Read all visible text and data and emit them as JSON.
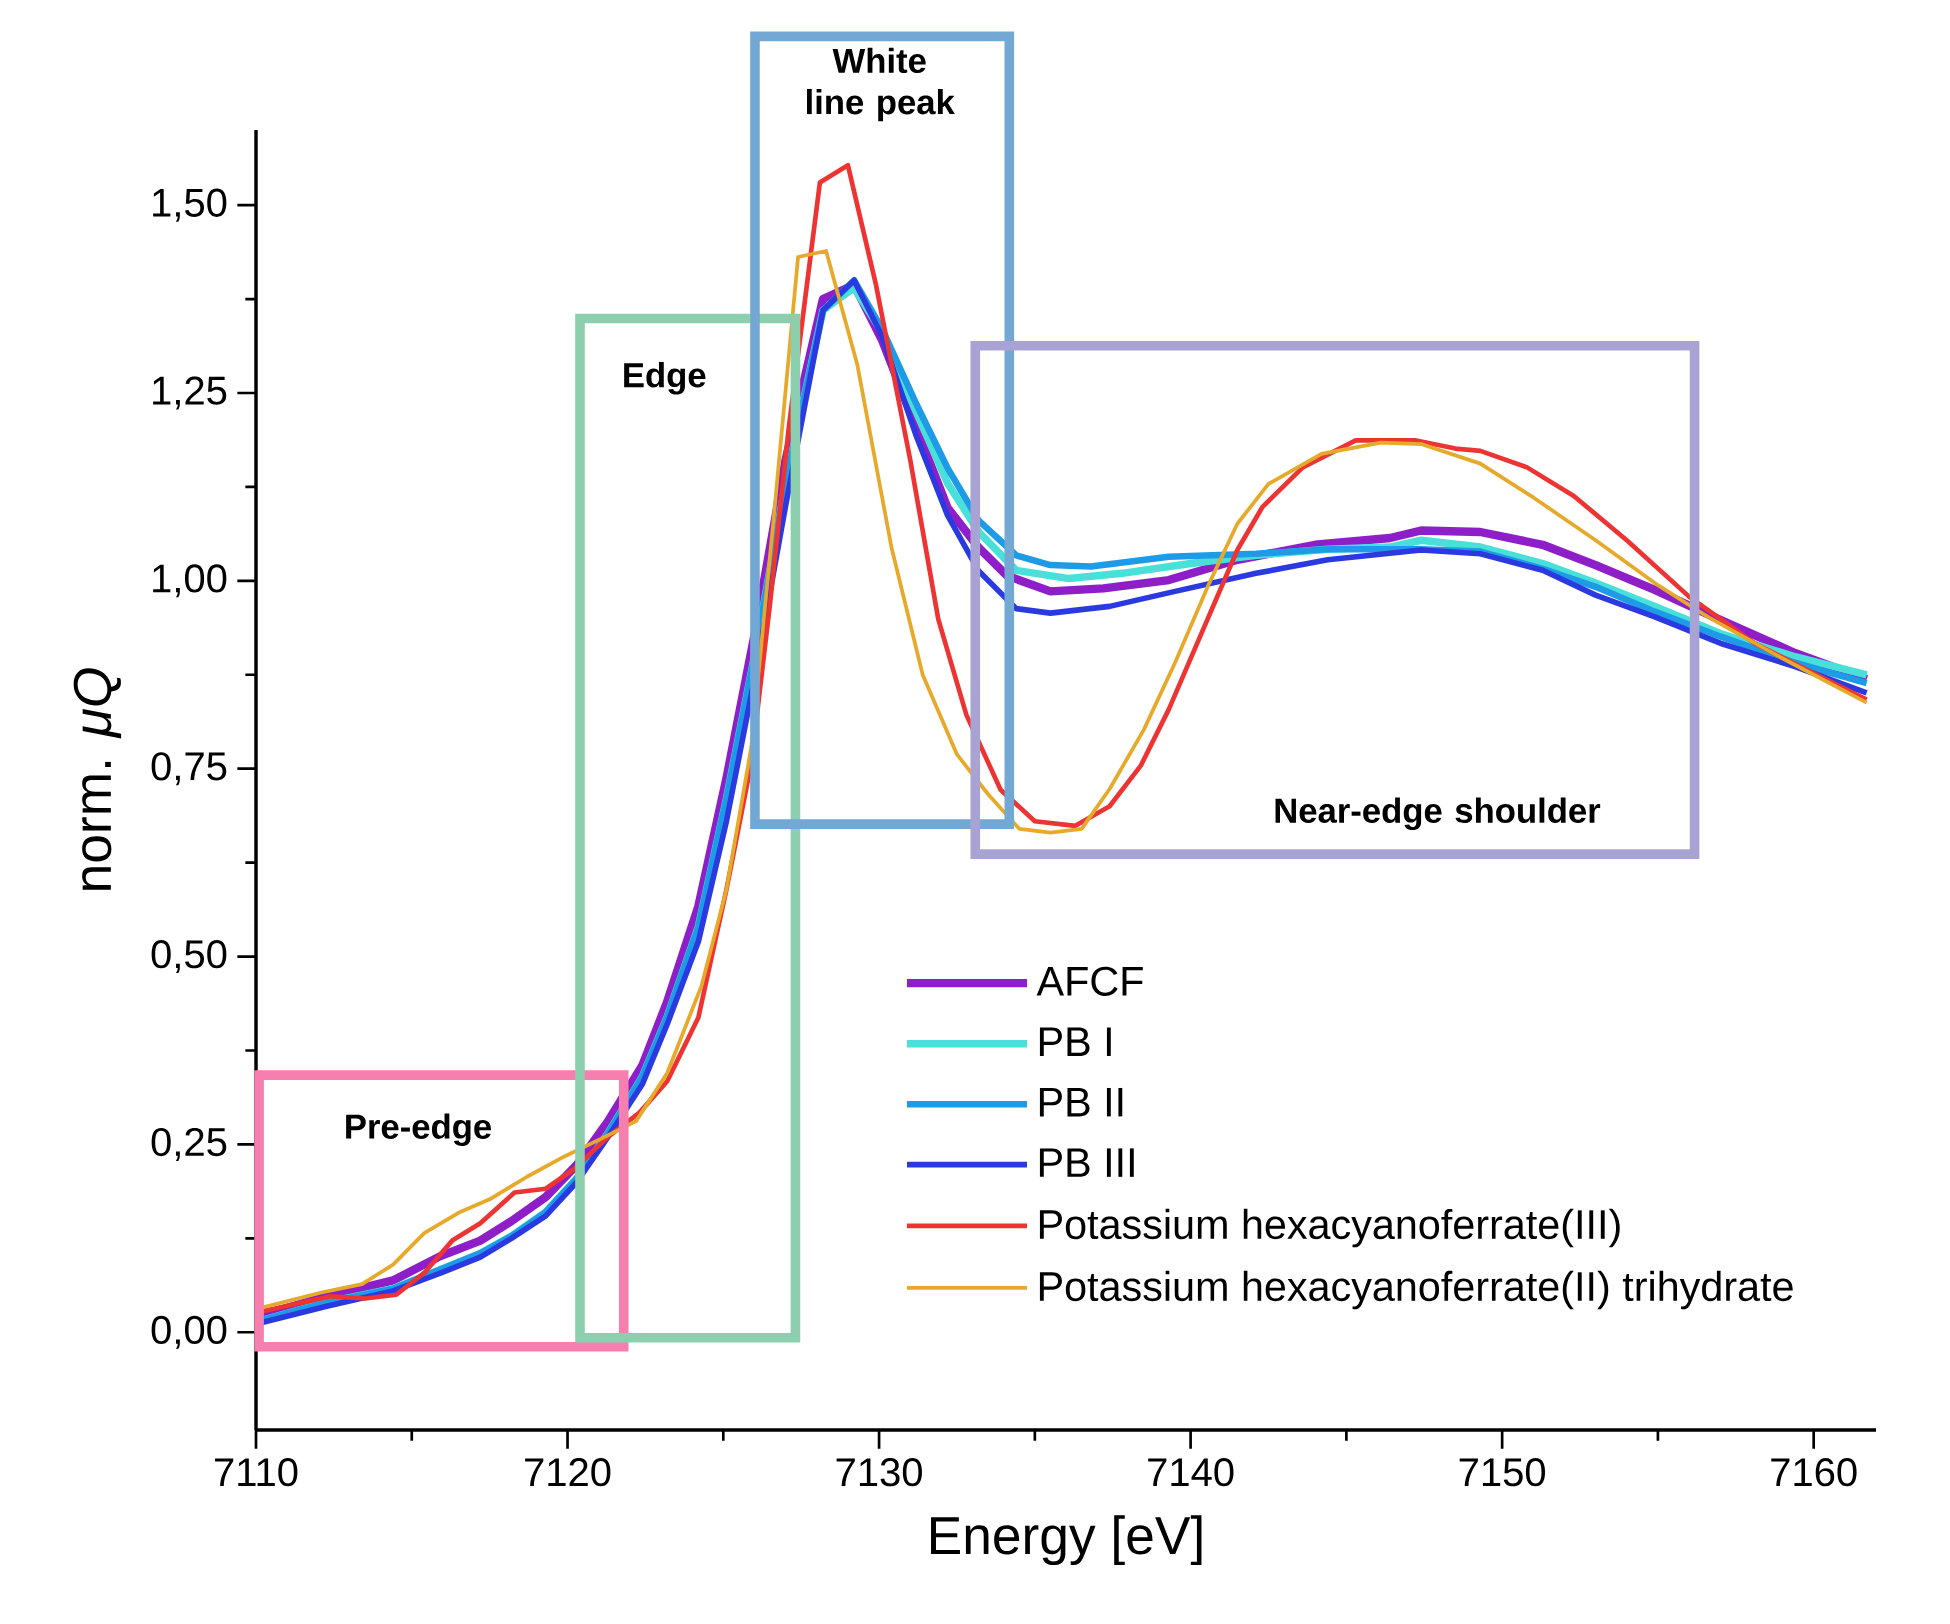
{
  "chart_data": {
    "type": "line",
    "xlabel": "Energy [eV]",
    "ylabel": "norm. *μQ*",
    "xlim": [
      7110,
      7162
    ],
    "ylim": [
      -0.13,
      1.6
    ],
    "xticks": [
      7110,
      7120,
      7130,
      7140,
      7150,
      7160
    ],
    "yticks": [
      {
        "value": 0,
        "label": "0,00"
      },
      {
        "value": 0.25,
        "label": "0,25"
      },
      {
        "value": 0.5,
        "label": "0,50"
      },
      {
        "value": 0.75,
        "label": "0,75"
      },
      {
        "value": 1,
        "label": "1,00"
      },
      {
        "value": 1.25,
        "label": "1,25"
      },
      {
        "value": 1.5,
        "label": "1,50"
      }
    ],
    "legend": "bottom right",
    "series": [
      {
        "name": "AFCF",
        "color": "#8e1ec8",
        "x": [
          7110.1,
          7112.3,
          7114.4,
          7115.9,
          7117.2,
          7118.2,
          7119.3,
          7120.3,
          7121.3,
          7122.4,
          7123.2,
          7124.2,
          7125.1,
          7126.0,
          7127.0,
          7128.2,
          7129.2,
          7130.1,
          7131.2,
          7132.2,
          7133.2,
          7134.1,
          7135.5,
          7137.2,
          7139.3,
          7141.5,
          7144.0,
          7146.4,
          7147.4,
          7149.3,
          7151.3,
          7153.0,
          7154.9,
          7157.0,
          7159.4,
          7161.7
        ],
        "values": [
          0.022,
          0.048,
          0.069,
          0.101,
          0.122,
          0.148,
          0.18,
          0.223,
          0.281,
          0.355,
          0.44,
          0.567,
          0.737,
          0.928,
          1.161,
          1.375,
          1.394,
          1.32,
          1.203,
          1.097,
          1.044,
          1.007,
          0.986,
          0.99,
          1.001,
          1.028,
          1.048,
          1.057,
          1.067,
          1.065,
          1.048,
          1.021,
          0.988,
          0.948,
          0.904,
          0.869
        ]
      },
      {
        "name": "PB I",
        "color": "#48e0d8",
        "x": [
          7110.1,
          7112.3,
          7114.4,
          7116.0,
          7117.2,
          7118.2,
          7119.3,
          7120.3,
          7121.3,
          7122.4,
          7123.2,
          7124.2,
          7125.1,
          7126.0,
          7127.0,
          7128.2,
          7129.2,
          7130.1,
          7131.2,
          7132.2,
          7133.2,
          7134.4,
          7136.1,
          7137.8,
          7140.0,
          7142.1,
          7144.4,
          7146.4,
          7147.4,
          7149.3,
          7151.3,
          7153.0,
          7154.9,
          7157.0,
          7159.4,
          7161.7
        ],
        "values": [
          0.015,
          0.04,
          0.058,
          0.085,
          0.105,
          0.128,
          0.16,
          0.205,
          0.265,
          0.34,
          0.42,
          0.54,
          0.71,
          0.9,
          1.13,
          1.36,
          1.39,
          1.33,
          1.224,
          1.13,
          1.065,
          1.014,
          1.003,
          1.01,
          1.023,
          1.034,
          1.042,
          1.045,
          1.054,
          1.045,
          1.023,
          0.997,
          0.966,
          0.93,
          0.899,
          0.875
        ]
      },
      {
        "name": "PB II",
        "color": "#1e9be6",
        "x": [
          7110.1,
          7112.3,
          7114.4,
          7116.0,
          7117.2,
          7118.2,
          7119.3,
          7120.3,
          7121.3,
          7122.4,
          7123.2,
          7124.2,
          7125.1,
          7126.0,
          7127.0,
          7128.2,
          7129.2,
          7130.1,
          7131.2,
          7132.2,
          7133.2,
          7134.4,
          7135.5,
          7136.8,
          7139.3,
          7142.1,
          7144.4,
          7147.4,
          7149.3,
          7151.3,
          7153.0,
          7154.9,
          7157.0,
          7159.4,
          7161.7
        ],
        "values": [
          0.015,
          0.04,
          0.058,
          0.085,
          0.105,
          0.128,
          0.16,
          0.205,
          0.265,
          0.34,
          0.42,
          0.54,
          0.71,
          0.9,
          1.13,
          1.36,
          1.4,
          1.335,
          1.235,
          1.15,
          1.08,
          1.034,
          1.021,
          1.019,
          1.032,
          1.036,
          1.042,
          1.042,
          1.039,
          1.016,
          0.992,
          0.959,
          0.926,
          0.891,
          0.864
        ]
      },
      {
        "name": "PB III",
        "color": "#2a3ae0",
        "x": [
          7110.1,
          7112.3,
          7114.4,
          7116.0,
          7117.2,
          7118.2,
          7119.3,
          7120.3,
          7121.3,
          7122.4,
          7123.2,
          7124.2,
          7125.1,
          7126.0,
          7127.0,
          7128.2,
          7129.2,
          7130.1,
          7131.2,
          7132.2,
          7133.2,
          7134.4,
          7135.5,
          7137.4,
          7139.5,
          7142.1,
          7144.4,
          7147.4,
          7149.3,
          7151.3,
          7153.0,
          7154.9,
          7157.0,
          7159.4,
          7161.7
        ],
        "values": [
          0.012,
          0.035,
          0.055,
          0.08,
          0.1,
          0.125,
          0.155,
          0.2,
          0.26,
          0.33,
          0.41,
          0.52,
          0.68,
          0.87,
          1.1,
          1.36,
          1.4,
          1.325,
          1.192,
          1.087,
          1.013,
          0.963,
          0.957,
          0.966,
          0.986,
          1.01,
          1.028,
          1.041,
          1.036,
          1.014,
          0.981,
          0.952,
          0.917,
          0.886,
          0.851
        ]
      },
      {
        "name": "Potassium hexacyanoferrate(III)",
        "color": "#ee3333",
        "x": [
          7110.1,
          7112.4,
          7113.5,
          7114.5,
          7115.4,
          7116.3,
          7117.2,
          7118.3,
          7119.3,
          7120.2,
          7121.3,
          7122.3,
          7123.2,
          7124.2,
          7125.1,
          7125.9,
          7126.5,
          7127.1,
          7128.1,
          7129.0,
          7129.9,
          7131.0,
          7131.9,
          7132.8,
          7133.9,
          7135.0,
          7136.3,
          7137.4,
          7138.4,
          7139.3,
          7140.4,
          7141.5,
          7142.3,
          7143.6,
          7145.3,
          7147.2,
          7148.5,
          7149.3,
          7150.8,
          7152.3,
          7154.0,
          7156.0,
          7158.1,
          7160.0,
          7161.7
        ],
        "values": [
          0.027,
          0.048,
          0.045,
          0.05,
          0.079,
          0.122,
          0.145,
          0.186,
          0.191,
          0.217,
          0.26,
          0.292,
          0.334,
          0.419,
          0.589,
          0.758,
          0.97,
          1.203,
          1.53,
          1.553,
          1.394,
          1.161,
          0.949,
          0.822,
          0.722,
          0.68,
          0.674,
          0.7,
          0.754,
          0.829,
          0.935,
          1.041,
          1.098,
          1.151,
          1.187,
          1.187,
          1.176,
          1.173,
          1.151,
          1.113,
          1.054,
          0.979,
          0.917,
          0.877,
          0.842
        ]
      },
      {
        "name": "Potassium hexacyanoferrate(II) trihydrate",
        "color": "#e6a92a",
        "x": [
          7110.1,
          7112.1,
          7113.4,
          7114.4,
          7115.4,
          7116.5,
          7117.5,
          7118.7,
          7119.9,
          7121.1,
          7122.2,
          7123.2,
          7124.3,
          7125.1,
          7125.9,
          7126.6,
          7127.4,
          7128.3,
          7129.3,
          7130.4,
          7131.4,
          7132.5,
          7133.5,
          7134.5,
          7135.5,
          7136.5,
          7137.4,
          7138.5,
          7139.5,
          7140.6,
          7141.5,
          7142.5,
          7144.2,
          7146.1,
          7147.4,
          7149.3,
          7151.0,
          7153.0,
          7154.9,
          7156.6,
          7158.9,
          7161.7
        ],
        "values": [
          0.032,
          0.053,
          0.064,
          0.09,
          0.132,
          0.159,
          0.177,
          0.207,
          0.234,
          0.258,
          0.281,
          0.345,
          0.461,
          0.589,
          0.779,
          1.076,
          1.431,
          1.439,
          1.288,
          1.044,
          0.875,
          0.769,
          0.716,
          0.67,
          0.665,
          0.67,
          0.723,
          0.802,
          0.891,
          0.997,
          1.076,
          1.129,
          1.169,
          1.184,
          1.182,
          1.156,
          1.111,
          1.054,
          0.997,
          0.952,
          0.899,
          0.838
        ]
      }
    ],
    "annotations": [
      "Pre-edge",
      "Edge",
      "White line peak",
      "Near-edge shoulder"
    ]
  }
}
